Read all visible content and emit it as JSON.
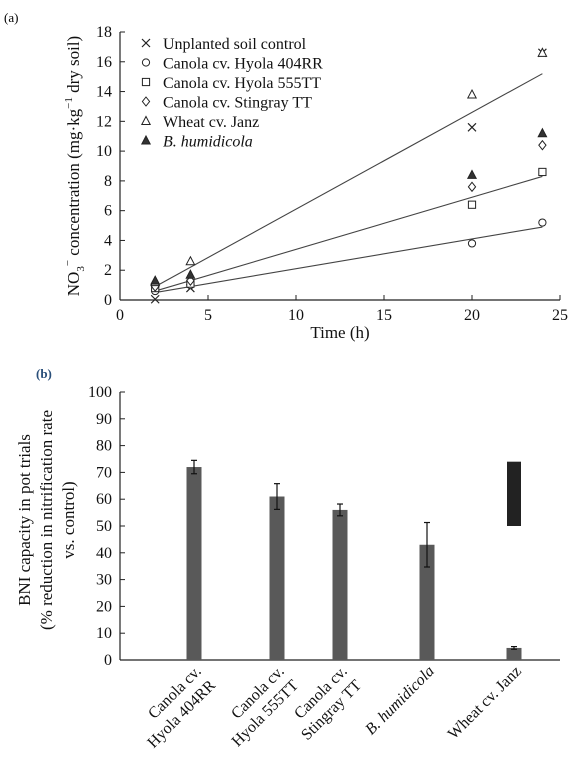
{
  "chart_data": [
    {
      "panel": "(a)",
      "type": "scatter",
      "xlabel": "Time (h)",
      "ylabel": "NO3− concentration (mg·kg−1 dry soil)",
      "ylabel_parts": {
        "before": "NO",
        "sub": "3",
        "sup": "−",
        "mid": " concentration (mg·kg",
        "sup2": "−1",
        "after": " dry soil)"
      },
      "xlim": [
        0,
        25
      ],
      "ylim": [
        0,
        18
      ],
      "xticks": [
        0,
        5,
        10,
        15,
        20,
        25
      ],
      "yticks": [
        0,
        2,
        4,
        6,
        8,
        10,
        12,
        14,
        16,
        18
      ],
      "legend": "top-left",
      "series": [
        {
          "name": "Unplanted soil control",
          "marker": "x",
          "x": [
            2,
            4,
            20,
            24
          ],
          "y": [
            0.05,
            0.8,
            11.6,
            16.6
          ]
        },
        {
          "name": "Canola cv. Hyola 404RR",
          "marker": "circle",
          "x": [
            2,
            4,
            20,
            24
          ],
          "y": [
            0.6,
            1.0,
            3.8,
            5.2
          ]
        },
        {
          "name": "Canola cv. Hyola 555TT",
          "marker": "square",
          "x": [
            2,
            4,
            20,
            24
          ],
          "y": [
            0.8,
            1.1,
            6.4,
            8.6
          ]
        },
        {
          "name": "Canola cv. Stingray TT",
          "marker": "diamond",
          "x": [
            2,
            4,
            20,
            24
          ],
          "y": [
            0.9,
            1.3,
            7.6,
            10.4
          ]
        },
        {
          "name": "Wheat cv. Janz",
          "marker": "triangle-open",
          "x": [
            2,
            4,
            20,
            24
          ],
          "y": [
            1.2,
            2.6,
            13.8,
            16.6
          ]
        },
        {
          "name": "B. humidicola",
          "italic": true,
          "marker": "triangle-filled",
          "x": [
            2,
            4,
            20,
            24
          ],
          "y": [
            1.3,
            1.7,
            8.4,
            11.2
          ]
        }
      ],
      "trend_lines": [
        {
          "x": [
            2,
            24
          ],
          "y": [
            0.9,
            15.2
          ]
        },
        {
          "x": [
            2,
            24
          ],
          "y": [
            0.6,
            8.3
          ]
        },
        {
          "x": [
            2,
            24
          ],
          "y": [
            0.5,
            4.9
          ]
        }
      ]
    },
    {
      "panel": "(b)",
      "type": "bar",
      "ylabel_lines": [
        "BNI capacity in pot trials",
        "(% reduction in nitrification rate",
        "vs. control)"
      ],
      "ylim": [
        0,
        100
      ],
      "yticks": [
        0,
        10,
        20,
        30,
        40,
        50,
        60,
        70,
        80,
        90,
        100
      ],
      "categories": [
        {
          "line1": "Canola cv.",
          "line2": "Hyola 404RR",
          "italic": false
        },
        {
          "line1": "Canola cv.",
          "line2": "Hyola 555TT",
          "italic": false
        },
        {
          "line1": "Canola cv.",
          "line2": "Stingray TT",
          "italic": false
        },
        {
          "line1": "B. humidicola",
          "line2": "",
          "italic": true
        },
        {
          "line1": "Wheat cv. Janz",
          "line2": "",
          "italic": false
        }
      ],
      "values": [
        72,
        61,
        56,
        43,
        4.5
      ],
      "errors": [
        2.5,
        4.8,
        2.2,
        8.3,
        0.5
      ],
      "extra_block": {
        "category_index": 4,
        "from": 50,
        "to": 74
      },
      "colors": {
        "bar": "#595959",
        "block": "#222222"
      }
    }
  ]
}
